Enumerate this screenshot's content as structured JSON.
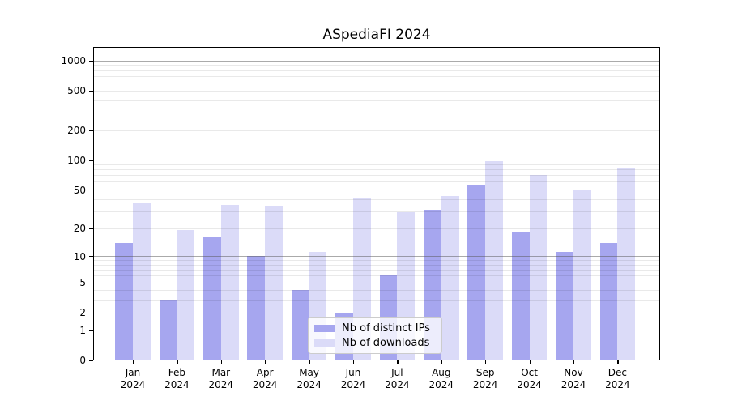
{
  "chart_data": {
    "type": "bar",
    "title": "ASpediaFI 2024",
    "categories": [
      "Jan 2024",
      "Feb 2024",
      "Mar 2024",
      "Apr 2024",
      "May 2024",
      "Jun 2024",
      "Jul 2024",
      "Aug 2024",
      "Sep 2024",
      "Oct 2024",
      "Nov 2024",
      "Dec 2024"
    ],
    "series": [
      {
        "name": "Nb of distinct IPs",
        "color": "#a6a6ef",
        "values": [
          14,
          3,
          16,
          10,
          4,
          2,
          6,
          31,
          55,
          18,
          11,
          14
        ]
      },
      {
        "name": "Nb of downloads",
        "color": "#dbdbf8",
        "values": [
          37,
          19,
          35,
          34,
          11,
          41,
          29,
          43,
          98,
          70,
          50,
          82
        ]
      }
    ],
    "xlabel": "",
    "ylabel": "",
    "y_axis": {
      "scale": "log10(value+1)",
      "ticks": [
        0,
        1,
        2,
        5,
        10,
        20,
        50,
        100,
        200,
        500,
        1000
      ],
      "major_gridlines": [
        1,
        10,
        100,
        1000
      ],
      "minor_gridline_multipliers": [
        2,
        3,
        4,
        5,
        6,
        7,
        8,
        9
      ],
      "ylim": [
        0,
        1350
      ]
    },
    "grid": "on",
    "legend": {
      "position": "bottom-center",
      "entries": [
        "Nb of distinct IPs",
        "Nb of downloads"
      ]
    },
    "colors": {
      "bar_distinct_ips": "#a6a6ef",
      "bar_downloads": "#dbdbf8",
      "major_grid": "#aaaaaa",
      "minor_grid": "#e9e9e9",
      "axis": "#000000",
      "background": "#ffffff"
    }
  }
}
